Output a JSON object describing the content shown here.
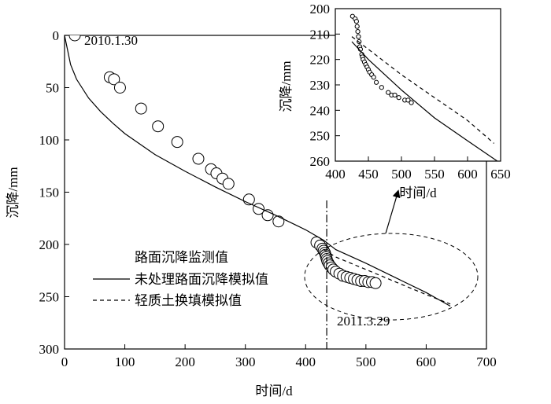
{
  "chart_data": {
    "type": "scatter",
    "main": {
      "xlabel": "时间/d",
      "ylabel": "沉降/mm",
      "xlim": [
        0,
        700
      ],
      "ylim": [
        300,
        0
      ],
      "xticks": [
        0,
        100,
        200,
        300,
        400,
        500,
        600,
        700
      ],
      "yticks": [
        0,
        50,
        100,
        150,
        200,
        250,
        300
      ],
      "series": [
        {
          "name": "路面沉降监测值",
          "style": "open-circle",
          "points": [
            [
              17,
              0
            ],
            [
              75,
              40
            ],
            [
              82,
              42
            ],
            [
              92,
              50
            ],
            [
              127,
              70
            ],
            [
              155,
              87
            ],
            [
              187,
              102
            ],
            [
              222,
              118
            ],
            [
              243,
              128
            ],
            [
              252,
              132
            ],
            [
              262,
              137
            ],
            [
              272,
              142
            ],
            [
              306,
              157
            ],
            [
              322,
              166
            ],
            [
              337,
              172
            ],
            [
              355,
              178
            ],
            [
              418,
              198
            ],
            [
              424,
              201
            ],
            [
              428,
              204
            ],
            [
              430,
              206
            ],
            [
              432,
              208
            ],
            [
              433,
              210
            ],
            [
              434,
              212
            ],
            [
              435,
              214
            ],
            [
              436,
              216
            ],
            [
              438,
              218
            ],
            [
              440,
              220
            ],
            [
              443,
              222
            ],
            [
              446,
              224
            ],
            [
              450,
              226
            ],
            [
              456,
              228
            ],
            [
              462,
              230
            ],
            [
              468,
              231
            ],
            [
              474,
              232
            ],
            [
              480,
              233
            ],
            [
              486,
              234
            ],
            [
              492,
              235
            ],
            [
              498,
              235
            ],
            [
              504,
              236
            ],
            [
              510,
              236
            ],
            [
              516,
              237
            ]
          ]
        },
        {
          "name": "未处理路面沉降模拟值",
          "style": "solid",
          "points": [
            [
              0,
              0
            ],
            [
              10,
              28
            ],
            [
              20,
              42
            ],
            [
              40,
              60
            ],
            [
              60,
              73
            ],
            [
              80,
              84
            ],
            [
              100,
              94
            ],
            [
              150,
              114
            ],
            [
              200,
              130
            ],
            [
              250,
              145
            ],
            [
              300,
              159
            ],
            [
              350,
              172
            ],
            [
              400,
              186
            ],
            [
              430,
              196
            ],
            [
              450,
              205
            ],
            [
              500,
              218
            ],
            [
              550,
              232
            ],
            [
              600,
              246
            ],
            [
              640,
              259
            ]
          ]
        },
        {
          "name": "轻质土换填模拟值",
          "style": "dashed",
          "points": [
            [
              430,
              205
            ],
            [
              450,
              212
            ],
            [
              500,
              224
            ],
            [
              550,
              236
            ],
            [
              600,
              248
            ],
            [
              640,
              257
            ]
          ]
        }
      ],
      "annotations": [
        {
          "text": "2010.1.30",
          "x": 17,
          "y": 0
        },
        {
          "text": "2011.3.29",
          "x": 435,
          "y": 265
        }
      ],
      "vline_x": 435
    },
    "inset": {
      "xlabel": "时间/d",
      "ylabel": "沉降/mm",
      "xlim": [
        400,
        650
      ],
      "ylim": [
        260,
        200
      ],
      "xticks": [
        400,
        450,
        500,
        550,
        600,
        650
      ],
      "yticks": [
        200,
        210,
        220,
        230,
        240,
        250,
        260
      ],
      "series": [
        {
          "name": "路面沉降监测值",
          "style": "open-circle",
          "points": [
            [
              426,
              203
            ],
            [
              430,
              204
            ],
            [
              432,
              205
            ],
            [
              433,
              207
            ],
            [
              434,
              209
            ],
            [
              435,
              211
            ],
            [
              436,
              213
            ],
            [
              437,
              215
            ],
            [
              438,
              216
            ],
            [
              440,
              218
            ],
            [
              441,
              219
            ],
            [
              442,
              220
            ],
            [
              444,
              221
            ],
            [
              446,
              222
            ],
            [
              448,
              223
            ],
            [
              450,
              224
            ],
            [
              452,
              225
            ],
            [
              455,
              226
            ],
            [
              458,
              227
            ],
            [
              462,
              229
            ],
            [
              470,
              231
            ],
            [
              480,
              233
            ],
            [
              485,
              234
            ],
            [
              490,
              234
            ],
            [
              496,
              235
            ],
            [
              505,
              236
            ],
            [
              510,
              236
            ],
            [
              515,
              237
            ]
          ]
        },
        {
          "name": "未处理路面沉降模拟值",
          "style": "solid",
          "points": [
            [
              425,
              213
            ],
            [
              450,
              220
            ],
            [
              500,
              232
            ],
            [
              550,
              243
            ],
            [
              600,
              252
            ],
            [
              645,
              260
            ]
          ]
        },
        {
          "name": "轻质土换填模拟值",
          "style": "dashed",
          "points": [
            [
              425,
              211
            ],
            [
              450,
              216
            ],
            [
              500,
              226
            ],
            [
              550,
              235
            ],
            [
              600,
              244
            ],
            [
              640,
              253
            ]
          ]
        }
      ]
    }
  }
}
